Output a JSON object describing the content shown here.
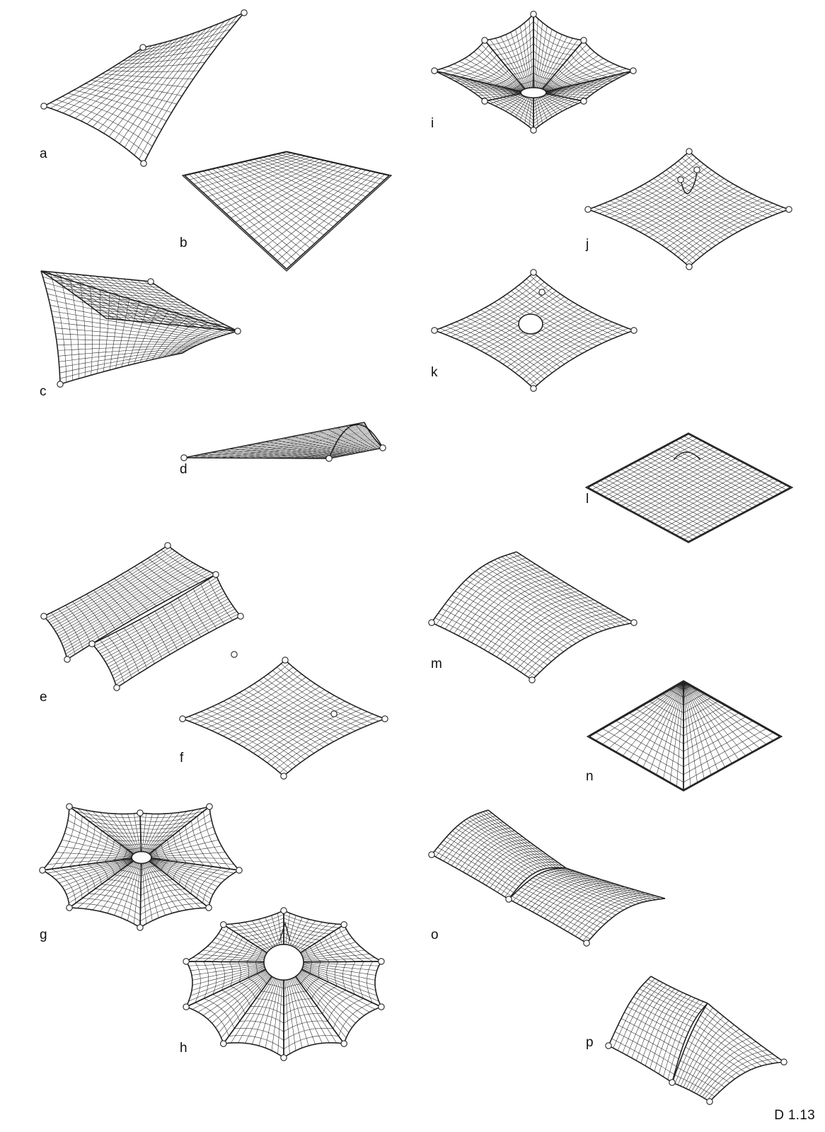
{
  "figure": {
    "caption": "D 1.13",
    "panels": [
      {
        "id": "a",
        "label": "a",
        "shape": "hypar, 4 point supports"
      },
      {
        "id": "b",
        "label": "b",
        "shape": "flat net in rigid frame"
      },
      {
        "id": "c",
        "label": "c",
        "shape": "saddle with ridge cable"
      },
      {
        "id": "d",
        "label": "d",
        "shape": "arch supported membrane"
      },
      {
        "id": "e",
        "label": "e",
        "shape": "ridge and valley"
      },
      {
        "id": "f",
        "label": "f",
        "shape": "hypar with edge cables"
      },
      {
        "id": "g",
        "label": "g",
        "shape": "point supported ring"
      },
      {
        "id": "h",
        "label": "h",
        "shape": "high point ring, star"
      },
      {
        "id": "i",
        "label": "i",
        "shape": "low point with eye"
      },
      {
        "id": "j",
        "label": "j",
        "shape": "internal loop"
      },
      {
        "id": "k",
        "label": "k",
        "shape": "eye opening"
      },
      {
        "id": "l",
        "label": "l",
        "shape": "internal hump in frame"
      },
      {
        "id": "m",
        "label": "m",
        "shape": "arch membrane"
      },
      {
        "id": "n",
        "label": "n",
        "shape": "pyramid in frame"
      },
      {
        "id": "o",
        "label": "o",
        "shape": "double arch"
      },
      {
        "id": "p",
        "label": "p",
        "shape": "double arch small"
      }
    ]
  }
}
